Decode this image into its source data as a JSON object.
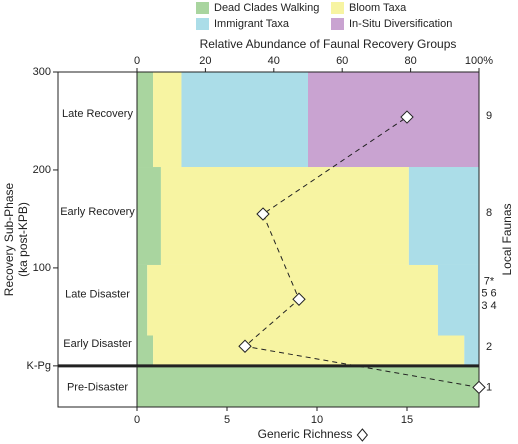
{
  "chart_data": {
    "type": "stacked_band_with_line",
    "legend": [
      "Dead Clades Walking",
      "Bloom Taxa",
      "Immigrant Taxa",
      "In-Situ Diversification"
    ],
    "top_axis_label": "Relative Abundance of Faunal Recovery Groups",
    "bottom_axis_label": "Generic Richness",
    "ylabel": [
      "Recovery Sub-Phase",
      "(ka post-KPB)"
    ],
    "y2label": "Local Faunas",
    "ylim": [
      -42,
      300
    ],
    "yticks": [
      300,
      200,
      100,
      {
        "value": 0,
        "label": "K-Pg"
      }
    ],
    "top_xlim": [
      0,
      100
    ],
    "top_xticks": [
      0,
      20,
      40,
      60,
      80,
      {
        "value": 100,
        "label": "100%"
      }
    ],
    "xlim": [
      0,
      19
    ],
    "xticks": [
      0,
      5,
      10,
      15
    ],
    "band_edges": [
      -42,
      0,
      31,
      103,
      203,
      300
    ],
    "series": [
      {
        "name": "Dead Clades Walking",
        "color": "#a9d59f",
        "values": [
          100,
          4.7,
          3,
          7,
          4.7
        ]
      },
      {
        "name": "Bloom Taxa",
        "color": "#f7f4a2",
        "values": [
          0,
          91,
          85,
          72.5,
          8.3
        ]
      },
      {
        "name": "Immigrant Taxa",
        "color": "#abdde8",
        "values": [
          0,
          4.3,
          12,
          20.5,
          37
        ]
      },
      {
        "name": "In-Situ Diversification",
        "color": "#c9a3d1",
        "values": [
          0,
          0,
          0,
          0,
          50
        ]
      }
    ],
    "richness": {
      "x": [
        19,
        6,
        9,
        7,
        15
      ],
      "y": [
        -22,
        20,
        68,
        155,
        254
      ]
    },
    "phases": [
      {
        "label": "Late Recovery",
        "y": 257
      },
      {
        "label": "Early Recovery",
        "y": 157
      },
      {
        "label": "Late Disaster",
        "y": 73
      },
      {
        "label": "Early Disaster",
        "y": 22
      },
      {
        "label": "Pre-Disaster",
        "y": -22
      }
    ],
    "faunas": [
      {
        "label": "9",
        "y": 255
      },
      {
        "label": "8",
        "y": 156
      },
      {
        "label": "7*",
        "y": 86
      },
      {
        "label": "5 6",
        "y": 74
      },
      {
        "label": "3 4",
        "y": 61
      },
      {
        "label": "2",
        "y": 19
      },
      {
        "label": "1",
        "y": -22
      }
    ]
  }
}
